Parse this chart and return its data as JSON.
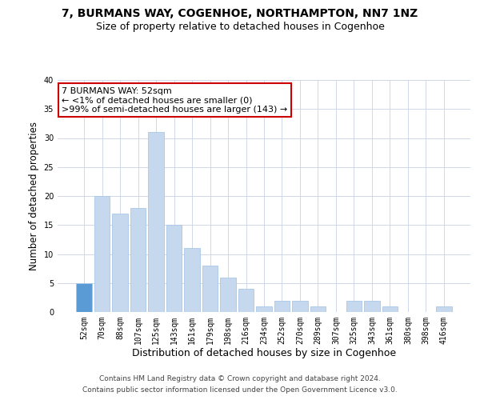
{
  "title": "7, BURMANS WAY, COGENHOE, NORTHAMPTON, NN7 1NZ",
  "subtitle": "Size of property relative to detached houses in Cogenhoe",
  "xlabel": "Distribution of detached houses by size in Cogenhoe",
  "ylabel": "Number of detached properties",
  "bar_color": "#c5d8ed",
  "bar_edge_color": "#a8c8e8",
  "categories": [
    "52sqm",
    "70sqm",
    "88sqm",
    "107sqm",
    "125sqm",
    "143sqm",
    "161sqm",
    "179sqm",
    "198sqm",
    "216sqm",
    "234sqm",
    "252sqm",
    "270sqm",
    "289sqm",
    "307sqm",
    "325sqm",
    "343sqm",
    "361sqm",
    "380sqm",
    "398sqm",
    "416sqm"
  ],
  "values": [
    5,
    20,
    17,
    18,
    31,
    15,
    11,
    8,
    6,
    4,
    1,
    2,
    2,
    1,
    0,
    2,
    2,
    1,
    0,
    0,
    1
  ],
  "highlight_index": 0,
  "highlight_color": "#5b9bd5",
  "annotation_line1": "7 BURMANS WAY: 52sqm",
  "annotation_line2": "← <1% of detached houses are smaller (0)",
  "annotation_line3": ">99% of semi-detached houses are larger (143) →",
  "annotation_box_color": "#ffffff",
  "annotation_box_edge_color": "#cc0000",
  "ylim": [
    0,
    40
  ],
  "yticks": [
    0,
    5,
    10,
    15,
    20,
    25,
    30,
    35,
    40
  ],
  "footer_line1": "Contains HM Land Registry data © Crown copyright and database right 2024.",
  "footer_line2": "Contains public sector information licensed under the Open Government Licence v3.0.",
  "bg_color": "#ffffff",
  "grid_color": "#d0d8e8",
  "title_fontsize": 10,
  "subtitle_fontsize": 9,
  "tick_fontsize": 7,
  "ylabel_fontsize": 8.5,
  "xlabel_fontsize": 9,
  "annotation_fontsize": 8,
  "footer_fontsize": 6.5
}
